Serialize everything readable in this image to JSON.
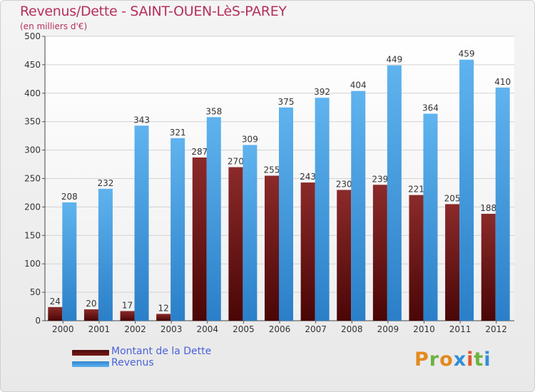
{
  "chart_data": {
    "type": "bar",
    "title": "Revenus/Dette - SAINT-OUEN-LèS-PAREY",
    "subtitle": "(en milliers d'€)",
    "categories": [
      "2000",
      "2001",
      "2002",
      "2003",
      "2004",
      "2005",
      "2006",
      "2007",
      "2008",
      "2009",
      "2010",
      "2011",
      "2012"
    ],
    "series": [
      {
        "name": "Montant de la Dette",
        "color": "#7a1a1a",
        "values": [
          24,
          20,
          17,
          12,
          287,
          270,
          255,
          243,
          230,
          239,
          221,
          205,
          188
        ]
      },
      {
        "name": "Revenus",
        "color": "#4aa3e6",
        "values": [
          208,
          232,
          343,
          321,
          358,
          309,
          375,
          392,
          404,
          449,
          364,
          459,
          410
        ]
      }
    ],
    "ylim": [
      0,
      500
    ],
    "yticks": [
      0,
      50,
      100,
      150,
      200,
      250,
      300,
      350,
      400,
      450,
      500
    ],
    "grid": true,
    "legend": "bottom-left"
  },
  "logo": {
    "letters": [
      "P",
      "r",
      "o",
      "x",
      "i",
      "t",
      "i"
    ],
    "colors": [
      "#e38a1c",
      "#6db33f",
      "#e38a1c",
      "#2f8fd6",
      "#e0582a",
      "#6db33f",
      "#2f8fd6"
    ]
  }
}
